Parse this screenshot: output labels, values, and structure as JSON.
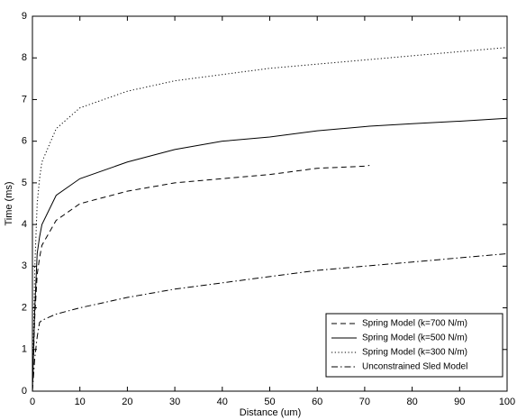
{
  "chart_data": {
    "type": "line",
    "xlabel": "Distance (um)",
    "ylabel": "Time (ms)",
    "x": [
      0,
      0.5,
      1,
      1.5,
      2,
      5,
      10,
      20,
      30,
      40,
      50,
      60,
      70,
      71,
      80,
      90,
      100
    ],
    "series": [
      {
        "name": "Spring Model (k=700 N/m)",
        "color": "#000000",
        "dash": "dashed",
        "values": [
          0,
          1.8,
          2.8,
          3.2,
          3.5,
          4.1,
          4.5,
          4.8,
          5.0,
          5.1,
          5.2,
          5.35,
          5.4,
          5.42,
          null,
          null,
          null
        ]
      },
      {
        "name": "Spring Model (k=500 N/m)",
        "color": "#000000",
        "dash": "solid",
        "values": [
          0,
          2.0,
          3.3,
          3.7,
          4.0,
          4.7,
          5.1,
          5.5,
          5.8,
          6.0,
          6.1,
          6.25,
          6.35,
          6.36,
          6.42,
          6.48,
          6.55
        ]
      },
      {
        "name": "Spring Model (k=300 N/m)",
        "color": "#000000",
        "dash": "dotted",
        "values": [
          0,
          3.0,
          4.5,
          5.1,
          5.5,
          6.3,
          6.8,
          7.2,
          7.45,
          7.6,
          7.75,
          7.85,
          7.95,
          7.96,
          8.05,
          8.15,
          8.25
        ]
      },
      {
        "name": "Unconstrained Sled Model",
        "color": "#000000",
        "dash": "dashdot",
        "values": [
          0,
          0.8,
          1.3,
          1.65,
          1.7,
          1.85,
          2.0,
          2.25,
          2.45,
          2.6,
          2.75,
          2.9,
          3.0,
          3.01,
          3.1,
          3.2,
          3.3
        ]
      }
    ],
    "xlim": [
      0,
      100
    ],
    "xticks": [
      0,
      10,
      20,
      30,
      40,
      50,
      60,
      70,
      80,
      90,
      100
    ],
    "ylim": [
      0,
      9
    ],
    "yticks": [
      0,
      1,
      2,
      3,
      4,
      5,
      6,
      7,
      8,
      9
    ],
    "grid": false,
    "legend": "lower right"
  }
}
